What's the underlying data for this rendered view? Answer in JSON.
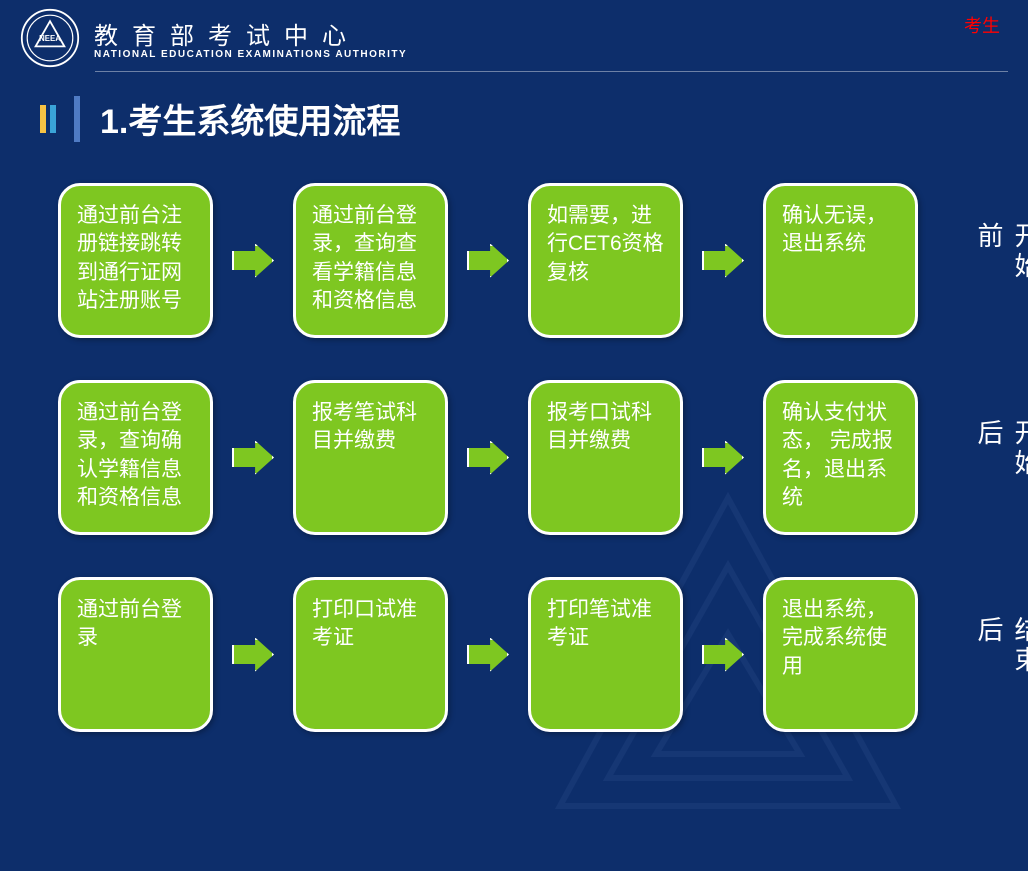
{
  "header": {
    "logo_text": "NEEA",
    "org_cn": "教育部考试中心",
    "org_en": "NATIONAL EDUCATION EXAMINATIONS AUTHORITY",
    "top_right": "考生"
  },
  "title": "1.考生系统使用流程",
  "colors": {
    "background": "#0d2e6b",
    "step_fill": "#7ec721",
    "step_border": "#ffffff",
    "arrow_fill": "#7ec721",
    "text_white": "#ffffff",
    "top_right_color": "#ff0000",
    "title_mark1": "#f6c244",
    "title_mark2": "#3aa4d8",
    "title_divider": "#4f7bc4"
  },
  "flowchart": {
    "type": "flowchart",
    "rows": [
      {
        "label": "网报开始前",
        "steps": [
          "通过前台注册链接跳转到通行证网站注册账号",
          "通过前台登录，查询查看学籍信息和资格信息",
          "如需要，进行CET6资格复核",
          "确认无误，退出系统"
        ]
      },
      {
        "label": "网报开始后",
        "steps": [
          "通过前台登录，查询确认学籍信息和资格信息",
          "报考笔试科目并缴费",
          "报考口试科目并缴费",
          "确认支付状态，\n完成报名，退出系统"
        ]
      },
      {
        "label": "网报结束后",
        "steps": [
          "通过前台登录",
          "打印口试准考证",
          "打印笔试准考证",
          "退出系统，完成系统使用"
        ]
      }
    ],
    "step_style": {
      "width": 155,
      "height": 155,
      "border_radius": 22,
      "border_width": 3,
      "font_size": 21
    }
  }
}
